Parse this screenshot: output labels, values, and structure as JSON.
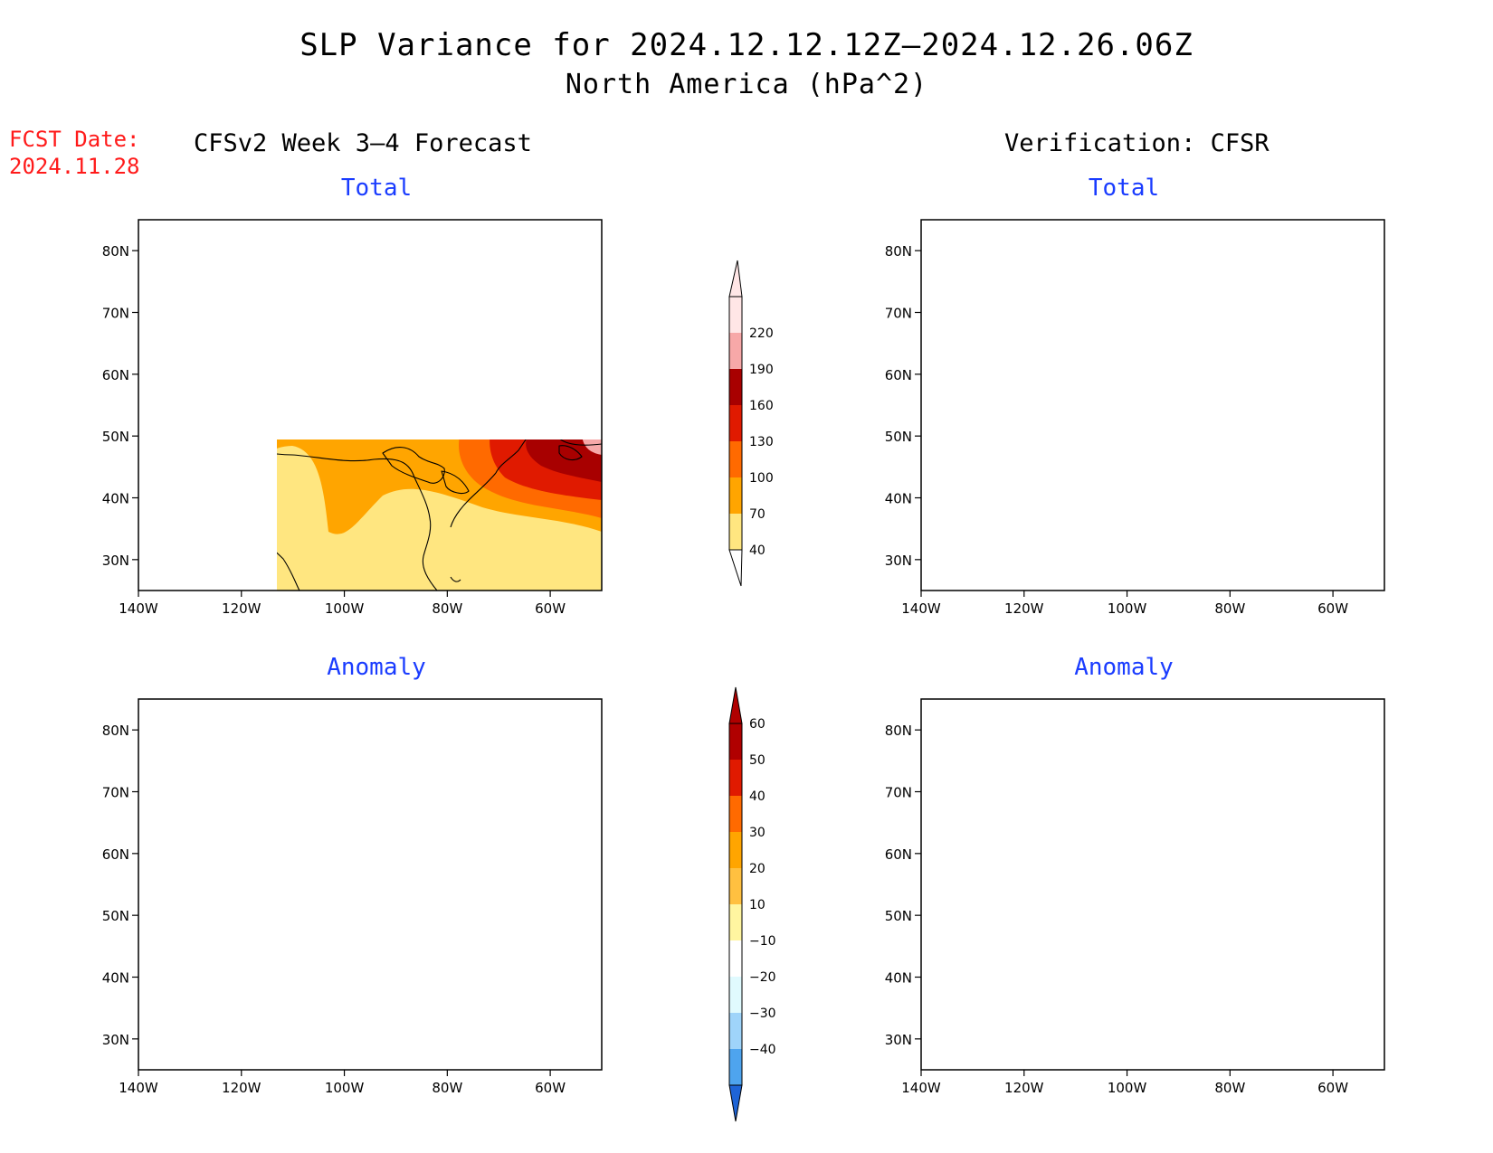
{
  "header": {
    "title": "SLP Variance for 2024.12.12.12Z–2024.12.26.06Z",
    "subtitle": "North America (hPa^2)",
    "fcst_label": "FCST Date:",
    "fcst_date": "2024.11.28"
  },
  "columns": {
    "left_title": "CFSv2 Week 3–4 Forecast",
    "right_title": "Verification: CFSR"
  },
  "panels": [
    {
      "id": "fcst-total",
      "title": "Total"
    },
    {
      "id": "verif-total",
      "title": "Total"
    },
    {
      "id": "fcst-anomaly",
      "title": "Anomaly"
    },
    {
      "id": "verif-anomaly",
      "title": "Anomaly"
    }
  ],
  "axes": {
    "lon_labels": [
      "140W",
      "120W",
      "100W",
      "80W",
      "60W"
    ],
    "lat_labels": [
      "80N",
      "70N",
      "60N",
      "50N",
      "40N",
      "30N"
    ],
    "lon_values": [
      -140,
      -120,
      -100,
      -80,
      -60
    ],
    "lat_values": [
      80,
      70,
      60,
      50,
      40,
      30
    ],
    "lon_range": [
      -140,
      -50
    ],
    "lat_range": [
      25,
      85
    ]
  },
  "colorbars": {
    "total": {
      "labels": [
        "220",
        "190",
        "160",
        "130",
        "100",
        "70",
        "40"
      ],
      "colors": [
        "#ffe6e6",
        "#f7a8a8",
        "#a80000",
        "#e01a00",
        "#ff6a00",
        "#ffa500",
        "#ffe680"
      ]
    },
    "anomaly": {
      "labels": [
        "60",
        "50",
        "40",
        "30",
        "20",
        "10",
        "−10",
        "−20",
        "−30",
        "−40"
      ],
      "colors": [
        "#b00000",
        "#e01a00",
        "#ff6a00",
        "#ffa500",
        "#ffc040",
        "#fff5a0",
        "#ffffff",
        "#e0fafe",
        "#9fd4fa",
        "#4ea4ee",
        "#1e64d6"
      ]
    }
  }
}
